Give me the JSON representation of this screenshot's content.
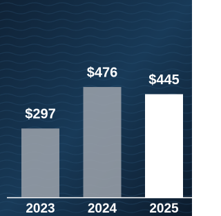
{
  "chart_data": {
    "type": "bar",
    "categories": [
      "2023",
      "2024",
      "2025"
    ],
    "values": [
      297,
      476,
      445
    ],
    "value_labels": [
      "$297",
      "$476",
      "$445"
    ],
    "colors": [
      "#9ea3ab",
      "#9ea3ab",
      "#ffffff"
    ]
  }
}
